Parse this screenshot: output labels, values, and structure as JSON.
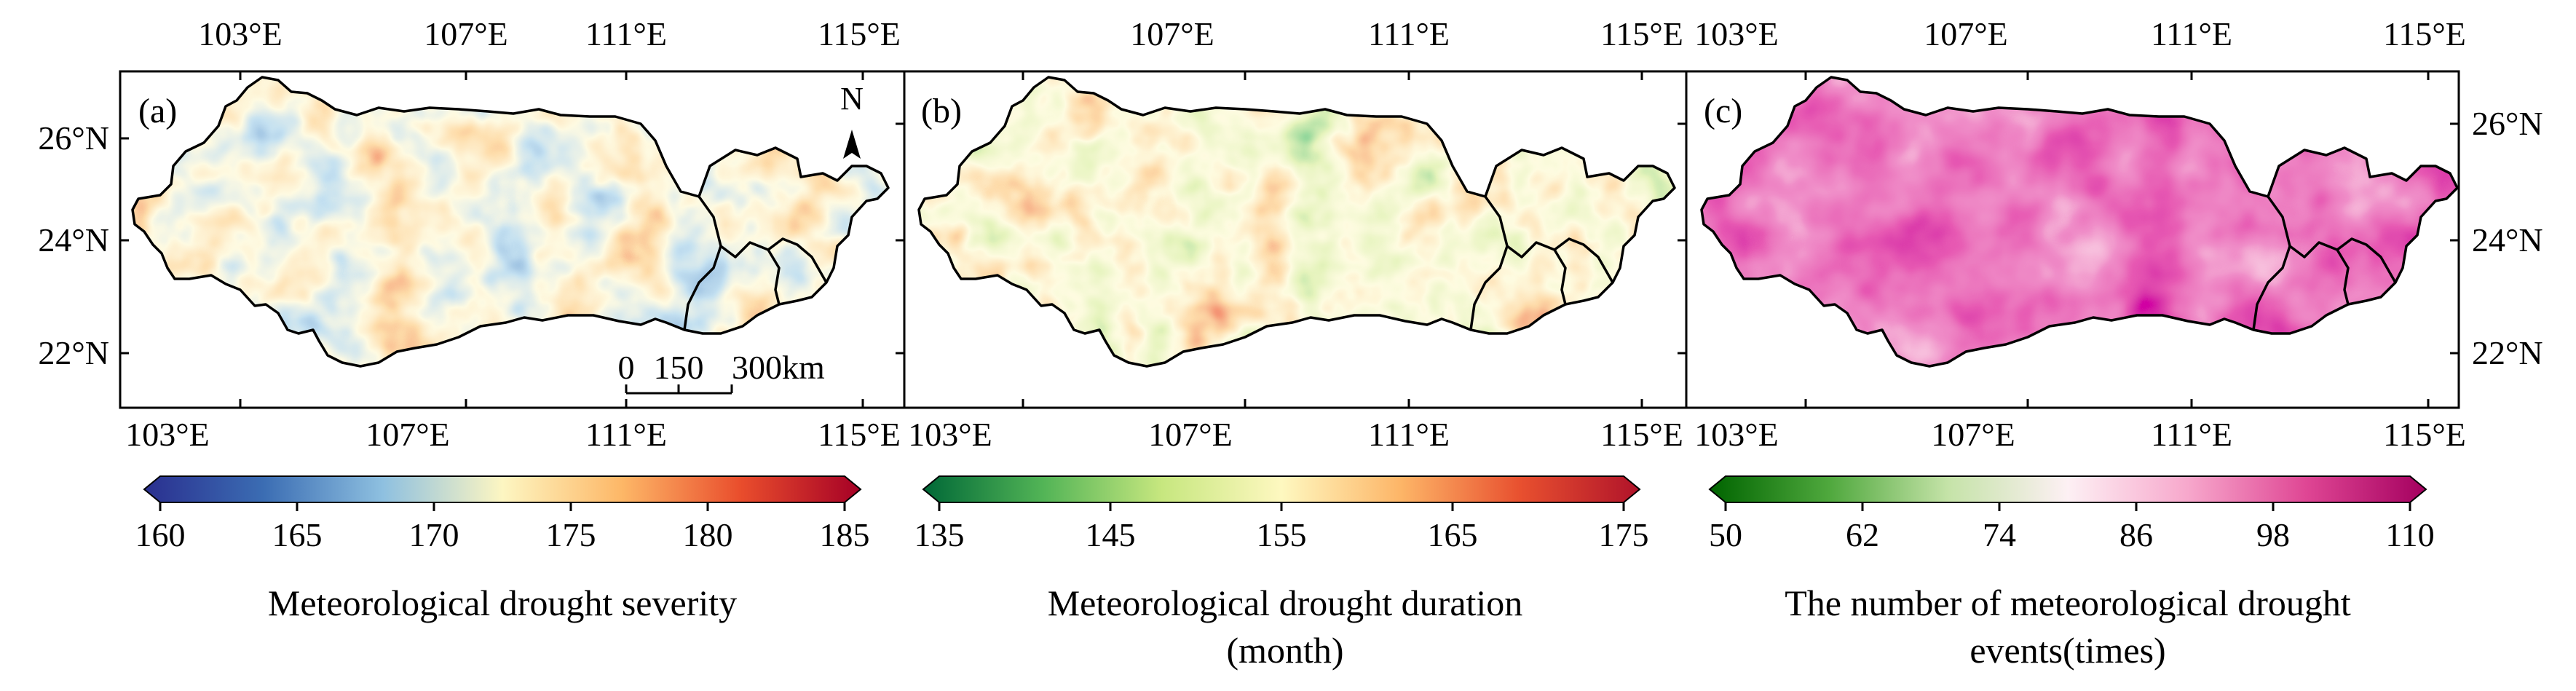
{
  "panels": [
    {
      "label": "(a)",
      "top_ticks": [
        "103°E",
        "107°E",
        "111°E",
        "115°E"
      ],
      "bottom_ticks": [
        "103°E",
        "107°E",
        "111°E",
        "115°E"
      ],
      "left_ticks": [
        "26°N",
        "24°N",
        "22°N"
      ],
      "north_label": "N",
      "scale_labels": [
        "0",
        "150",
        "300km"
      ],
      "colormap": [
        "#2a2f8f",
        "#3b6db3",
        "#8ec0e0",
        "#fdf6c2",
        "#fdb767",
        "#e94d2c",
        "#a50026"
      ],
      "colorbar": {
        "ticks": [
          "160",
          "165",
          "170",
          "175",
          "180",
          "185"
        ],
        "title_line1": "Meteorological drought severity",
        "title_line2": ""
      }
    },
    {
      "label": "(b)",
      "top_ticks": [
        "107°E",
        "111°E",
        "115°E"
      ],
      "bottom_ticks": [
        "103°E",
        "107°E",
        "111°E",
        "115°E"
      ],
      "colormap": [
        "#006837",
        "#52b456",
        "#c7e77f",
        "#fef8c0",
        "#fdb567",
        "#e8502f",
        "#b0132a"
      ],
      "colorbar": {
        "ticks": [
          "135",
          "145",
          "155",
          "165",
          "175"
        ],
        "title_line1": "Meteorological drought duration",
        "title_line2": "(month)"
      }
    },
    {
      "label": "(c)",
      "top_ticks": [
        "103°E",
        "107°E",
        "111°E",
        "115°E"
      ],
      "bottom_ticks": [
        "103°E",
        "107°E",
        "111°E",
        "115°E"
      ],
      "right_ticks": [
        "26°N",
        "24°N",
        "22°N"
      ],
      "colormap": [
        "#006400",
        "#4fa83d",
        "#c5e3a8",
        "#fdf0f4",
        "#f7a8cc",
        "#df4694",
        "#a4005f"
      ],
      "colorbar": {
        "ticks": [
          "50",
          "62",
          "74",
          "86",
          "98",
          "110"
        ],
        "title_line1": "The number of meteorological drought",
        "title_line2": "events(times)"
      }
    }
  ]
}
